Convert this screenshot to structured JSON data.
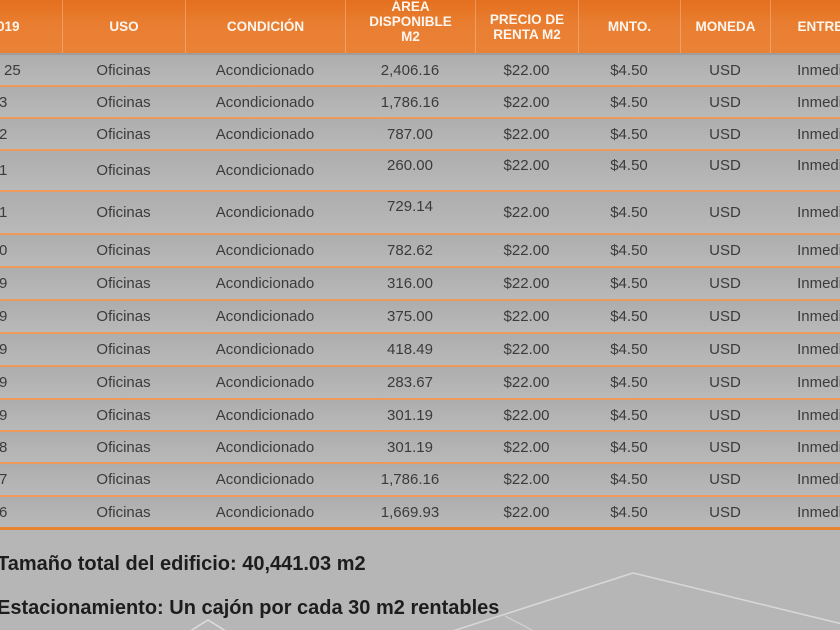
{
  "table": {
    "columns": [
      {
        "key": "floor",
        "label": "019",
        "lines": [
          "019"
        ]
      },
      {
        "key": "uso",
        "label": "USO",
        "lines": [
          "USO"
        ]
      },
      {
        "key": "condicion",
        "label": "CONDICIÓN",
        "lines": [
          "CONDICIÓN"
        ]
      },
      {
        "key": "area",
        "label": "ÁREA DISPONIBLE M2",
        "lines": [
          "ÁREA",
          "DISPONIBLE",
          "M2"
        ]
      },
      {
        "key": "precio",
        "label": "PRECIO DE RENTA M2",
        "lines": [
          "PRECIO DE",
          "RENTA M2"
        ]
      },
      {
        "key": "mnto",
        "label": "MNTO.",
        "lines": [
          "MNTO."
        ]
      },
      {
        "key": "moneda",
        "label": "MONEDA",
        "lines": [
          "MONEDA"
        ]
      },
      {
        "key": "entrega",
        "label": "ENTREGA",
        "lines": [
          "ENTREGA"
        ]
      }
    ],
    "rows": [
      {
        "floor": "25",
        "uso": "Oficinas",
        "condicion": "Acondicionado",
        "area": "2,406.16",
        "precio": "$22.00",
        "mnto": "$4.50",
        "moneda": "USD",
        "entrega": "Inmediata"
      },
      {
        "floor": "3",
        "uso": "Oficinas",
        "condicion": "Acondicionado",
        "area": "1,786.16",
        "precio": "$22.00",
        "mnto": "$4.50",
        "moneda": "USD",
        "entrega": "Inmediata"
      },
      {
        "floor": "2",
        "uso": "Oficinas",
        "condicion": "Acondicionado",
        "area": "787.00",
        "precio": "$22.00",
        "mnto": "$4.50",
        "moneda": "USD",
        "entrega": "Inmediata"
      },
      {
        "floor": "1",
        "uso": "Oficinas",
        "condicion": "Acondicionado",
        "area": "260.00",
        "precio": "$22.00",
        "mnto": "$4.50",
        "moneda": "USD",
        "entrega": "Inmediata"
      },
      {
        "floor": "1",
        "uso": "Oficinas",
        "condicion": "Acondicionado",
        "area": "729.14",
        "precio": "$22.00",
        "mnto": "$4.50",
        "moneda": "USD",
        "entrega": "Inmediata"
      },
      {
        "floor": "0",
        "uso": "Oficinas",
        "condicion": "Acondicionado",
        "area": "782.62",
        "precio": "$22.00",
        "mnto": "$4.50",
        "moneda": "USD",
        "entrega": "Inmediata"
      },
      {
        "floor": "9",
        "uso": "Oficinas",
        "condicion": "Acondicionado",
        "area": "316.00",
        "precio": "$22.00",
        "mnto": "$4.50",
        "moneda": "USD",
        "entrega": "Inmediata"
      },
      {
        "floor": "9",
        "uso": "Oficinas",
        "condicion": "Acondicionado",
        "area": "375.00",
        "precio": "$22.00",
        "mnto": "$4.50",
        "moneda": "USD",
        "entrega": "Inmediata"
      },
      {
        "floor": "9",
        "uso": "Oficinas",
        "condicion": "Acondicionado",
        "area": "418.49",
        "precio": "$22.00",
        "mnto": "$4.50",
        "moneda": "USD",
        "entrega": "Inmediata"
      },
      {
        "floor": "9",
        "uso": "Oficinas",
        "condicion": "Acondicionado",
        "area": "283.67",
        "precio": "$22.00",
        "mnto": "$4.50",
        "moneda": "USD",
        "entrega": "Inmediata"
      },
      {
        "floor": "9",
        "uso": "Oficinas",
        "condicion": "Acondicionado",
        "area": "301.19",
        "precio": "$22.00",
        "mnto": "$4.50",
        "moneda": "USD",
        "entrega": "Inmediata"
      },
      {
        "floor": "8",
        "uso": "Oficinas",
        "condicion": "Acondicionado",
        "area": "301.19",
        "precio": "$22.00",
        "mnto": "$4.50",
        "moneda": "USD",
        "entrega": "Inmediata"
      },
      {
        "floor": "7",
        "uso": "Oficinas",
        "condicion": "Acondicionado",
        "area": "1,786.16",
        "precio": "$22.00",
        "mnto": "$4.50",
        "moneda": "USD",
        "entrega": "Inmediata"
      },
      {
        "floor": "6",
        "uso": "Oficinas",
        "condicion": "Acondicionado",
        "area": "1,669.93",
        "precio": "$22.00",
        "mnto": "$4.50",
        "moneda": "USD",
        "entrega": "Inmediata"
      }
    ]
  },
  "footer": {
    "line1": "Tamaño total del edificio: 40,441.03 m2",
    "line2": "Estacionamiento: Un cajón por cada 30 m2 rentables"
  },
  "colors": {
    "header_orange": "#e97e31",
    "row_separator_orange": "#ee9a5d",
    "table_bottom_border": "#e8832f",
    "background_gray": "#b6b6b6",
    "row_gray": "#b3b3b3",
    "header_text": "#fdf6ef",
    "body_text": "#3b3b3b",
    "footer_text": "#1d1d1d"
  }
}
